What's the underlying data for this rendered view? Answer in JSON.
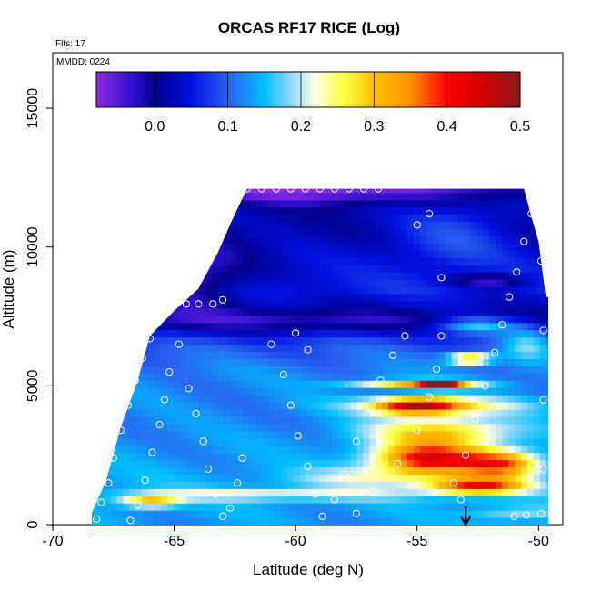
{
  "chart_data": {
    "type": "heatmap",
    "title": "ORCAS RF17 RICE (Log)",
    "annotations": {
      "flights": "Flts: 17",
      "date": "MMDD: 0224"
    },
    "xlabel": "Latitude (deg N)",
    "ylabel": "Altitude (m)",
    "xlim": [
      -70,
      -49
    ],
    "ylim": [
      0,
      17000
    ],
    "x_ticks": [
      -70,
      -65,
      -60,
      -55,
      -50
    ],
    "x_tick_labels": [
      "-70",
      "-65",
      "-60",
      "-55",
      "-50"
    ],
    "y_ticks": [
      0,
      5000,
      10000,
      15000
    ],
    "y_tick_labels": [
      "0",
      "5000",
      "10000",
      "15000"
    ],
    "colorbar": {
      "min": -0.08,
      "max": 0.5,
      "ticks": [
        0.0,
        0.1,
        0.2,
        0.3,
        0.4,
        0.5
      ],
      "tick_labels": [
        "0.0",
        "0.1",
        "0.2",
        "0.3",
        "0.4",
        "0.5"
      ],
      "stops": [
        {
          "v": -0.08,
          "c": "#8a2be2"
        },
        {
          "v": -0.03,
          "c": "#3010d0"
        },
        {
          "v": 0.0,
          "c": "#00008b"
        },
        {
          "v": 0.05,
          "c": "#0010e0"
        },
        {
          "v": 0.1,
          "c": "#2a60f0"
        },
        {
          "v": 0.15,
          "c": "#00bfff"
        },
        {
          "v": 0.19,
          "c": "#a0dcff"
        },
        {
          "v": 0.22,
          "c": "#ffffe0"
        },
        {
          "v": 0.26,
          "c": "#ffff40"
        },
        {
          "v": 0.3,
          "c": "#ffc000"
        },
        {
          "v": 0.35,
          "c": "#ff9000"
        },
        {
          "v": 0.4,
          "c": "#ff0000"
        },
        {
          "v": 0.45,
          "c": "#d00000"
        },
        {
          "v": 0.5,
          "c": "#8b1a1a"
        }
      ]
    },
    "data_extent": {
      "lat_start": -68.4,
      "lat_end": -49.6,
      "top_profile": [
        [
          -68.4,
          400
        ],
        [
          -67.8,
          1600
        ],
        [
          -67.2,
          3500
        ],
        [
          -66.5,
          5200
        ],
        [
          -66.0,
          6800
        ],
        [
          -65.0,
          7700
        ],
        [
          -64.0,
          8500
        ],
        [
          -63.2,
          9800
        ],
        [
          -62.6,
          11000
        ],
        [
          -62.0,
          12100
        ],
        [
          -50.6,
          12100
        ],
        [
          -50.3,
          11100
        ],
        [
          -50.0,
          10200
        ],
        [
          -49.7,
          8200
        ],
        [
          -49.6,
          8200
        ]
      ]
    },
    "base_field": [
      {
        "alt": 0,
        "v": 0.13
      },
      {
        "alt": 1500,
        "v": 0.14
      },
      {
        "alt": 2500,
        "v": 0.13
      },
      {
        "alt": 4000,
        "v": 0.12
      },
      {
        "alt": 5500,
        "v": 0.12
      },
      {
        "alt": 6500,
        "v": 0.09
      },
      {
        "alt": 7500,
        "v": 0.01
      },
      {
        "alt": 8500,
        "v": 0.06
      },
      {
        "alt": 9500,
        "v": 0.04
      },
      {
        "alt": 10500,
        "v": 0.02
      },
      {
        "alt": 11500,
        "v": 0.02
      },
      {
        "alt": 12100,
        "v": -0.03
      }
    ],
    "features": [
      {
        "name": "upper west minimum",
        "lat": -64.5,
        "alt": 9000,
        "dlat": 2.5,
        "dalt": 1300,
        "dv": -0.09
      },
      {
        "name": "top layer minimum",
        "lat": -59.0,
        "alt": 12000,
        "dlat": 4.5,
        "dalt": 500,
        "dv": -0.06
      },
      {
        "name": "upper east blue",
        "lat": -53.5,
        "alt": 10500,
        "dlat": 2.5,
        "dalt": 1200,
        "dv": 0.06
      },
      {
        "name": "dark band 7500m",
        "lat": -60.0,
        "alt": 7300,
        "dlat": 6.0,
        "dalt": 400,
        "dv": -0.05
      },
      {
        "name": "dark patch 9000m east",
        "lat": -52.0,
        "alt": 8800,
        "dlat": 1.6,
        "dalt": 250,
        "dv": -0.09
      },
      {
        "name": "low-level yellow band",
        "lat": -61.0,
        "alt": 1100,
        "dlat": 6.0,
        "dalt": 220,
        "dv": 0.09
      },
      {
        "name": "low west orange",
        "lat": -66.0,
        "alt": 850,
        "dlat": 1.2,
        "dalt": 220,
        "dv": 0.16
      },
      {
        "name": "mid layer light",
        "lat": -57.0,
        "alt": 1700,
        "dlat": 3.0,
        "dalt": 350,
        "dv": 0.07
      },
      {
        "name": "main red core",
        "lat": -54.5,
        "alt": 2400,
        "dlat": 2.3,
        "dalt": 600,
        "dv": 0.29
      },
      {
        "name": "red core low",
        "lat": -52.5,
        "alt": 1400,
        "dlat": 2.0,
        "dalt": 300,
        "dv": 0.25
      },
      {
        "name": "red core east",
        "lat": -51.5,
        "alt": 2200,
        "dlat": 1.6,
        "dalt": 500,
        "dv": 0.22
      },
      {
        "name": "orange 3500m",
        "lat": -54.0,
        "alt": 3400,
        "dlat": 3.0,
        "dalt": 500,
        "dv": 0.16
      },
      {
        "name": "red 4300m",
        "lat": -55.0,
        "alt": 4300,
        "dlat": 1.7,
        "dalt": 300,
        "dv": 0.26
      },
      {
        "name": "yellow 4300m wide",
        "lat": -54.0,
        "alt": 4300,
        "dlat": 3.8,
        "dalt": 350,
        "dv": 0.12
      },
      {
        "name": "orange 5100m",
        "lat": -55.0,
        "alt": 5100,
        "dlat": 2.6,
        "dalt": 150,
        "dv": 0.2
      },
      {
        "name": "red 5100m",
        "lat": -54.0,
        "alt": 5050,
        "dlat": 0.8,
        "dalt": 120,
        "dv": 0.27
      },
      {
        "name": "orange 6000m",
        "lat": -52.8,
        "alt": 6000,
        "dlat": 0.9,
        "dalt": 200,
        "dv": 0.24
      },
      {
        "name": "light 7000m",
        "lat": -52.5,
        "alt": 7200,
        "dlat": 1.6,
        "dalt": 300,
        "dv": 0.12
      },
      {
        "name": "light east 7000m",
        "lat": -50.5,
        "alt": 6500,
        "dlat": 1.0,
        "dalt": 700,
        "dv": 0.08
      },
      {
        "name": "light low east",
        "lat": -51.0,
        "alt": 400,
        "dlat": 2.0,
        "dalt": 300,
        "dv": 0.06
      }
    ],
    "flight_points": [
      [
        -68.2,
        200
      ],
      [
        -68.0,
        800
      ],
      [
        -67.7,
        1500
      ],
      [
        -67.5,
        2400
      ],
      [
        -67.2,
        3400
      ],
      [
        -66.9,
        4300
      ],
      [
        -66.6,
        5200
      ],
      [
        -66.3,
        6000
      ],
      [
        -66.0,
        6700
      ],
      [
        -65.5,
        7500
      ],
      [
        -65.0,
        7950
      ],
      [
        -64.5,
        7950
      ],
      [
        -64.0,
        7950
      ],
      [
        -63.4,
        7950
      ],
      [
        -63.0,
        8100
      ],
      [
        -66.8,
        150
      ],
      [
        -66.5,
        700
      ],
      [
        -66.2,
        1600
      ],
      [
        -65.9,
        2600
      ],
      [
        -65.6,
        3600
      ],
      [
        -65.4,
        4500
      ],
      [
        -65.2,
        5500
      ],
      [
        -64.8,
        6500
      ],
      [
        -64.4,
        4900
      ],
      [
        -64.1,
        4000
      ],
      [
        -63.8,
        3000
      ],
      [
        -63.6,
        2000
      ],
      [
        -63.3,
        1100
      ],
      [
        -63.0,
        300
      ],
      [
        -62.7,
        600
      ],
      [
        -62.4,
        1500
      ],
      [
        -62.2,
        2400
      ],
      [
        -62.0,
        12100
      ],
      [
        -61.4,
        12100
      ],
      [
        -60.8,
        12100
      ],
      [
        -60.2,
        12100
      ],
      [
        -59.6,
        12100
      ],
      [
        -59.0,
        12100
      ],
      [
        -58.4,
        12100
      ],
      [
        -57.8,
        12100
      ],
      [
        -57.2,
        12100
      ],
      [
        -56.6,
        12100
      ],
      [
        -61.0,
        6500
      ],
      [
        -60.5,
        5400
      ],
      [
        -60.2,
        4300
      ],
      [
        -59.9,
        3200
      ],
      [
        -59.5,
        2100
      ],
      [
        -59.2,
        1100
      ],
      [
        -58.9,
        300
      ],
      [
        -58.4,
        900
      ],
      [
        -58.0,
        1800
      ],
      [
        -57.5,
        3000
      ],
      [
        -57.0,
        4200
      ],
      [
        -56.5,
        5200
      ],
      [
        -56.0,
        6100
      ],
      [
        -55.5,
        6800
      ],
      [
        -60.0,
        6900
      ],
      [
        -59.5,
        6300
      ],
      [
        -57.5,
        400
      ],
      [
        -56.8,
        1200
      ],
      [
        -55.8,
        2200
      ],
      [
        -55.0,
        3400
      ],
      [
        -54.5,
        4600
      ],
      [
        -54.2,
        5600
      ],
      [
        -54.0,
        6800
      ],
      [
        -55.0,
        10800
      ],
      [
        -54.0,
        8900
      ],
      [
        -54.5,
        11200
      ],
      [
        -53.5,
        1500
      ],
      [
        -53.2,
        900
      ],
      [
        -53.0,
        2500
      ],
      [
        -52.6,
        3800
      ],
      [
        -52.2,
        5000
      ],
      [
        -51.8,
        6200
      ],
      [
        -51.5,
        7200
      ],
      [
        -51.2,
        8200
      ],
      [
        -50.9,
        9100
      ],
      [
        -50.6,
        10200
      ],
      [
        -50.3,
        11200
      ],
      [
        -50.1,
        12000
      ],
      [
        -49.9,
        9500
      ],
      [
        -49.8,
        7000
      ],
      [
        -49.8,
        4500
      ],
      [
        -49.8,
        2000
      ],
      [
        -49.9,
        400
      ],
      [
        -51.0,
        300
      ],
      [
        -50.5,
        350
      ]
    ],
    "arrow_marker_lat": -53.0
  }
}
